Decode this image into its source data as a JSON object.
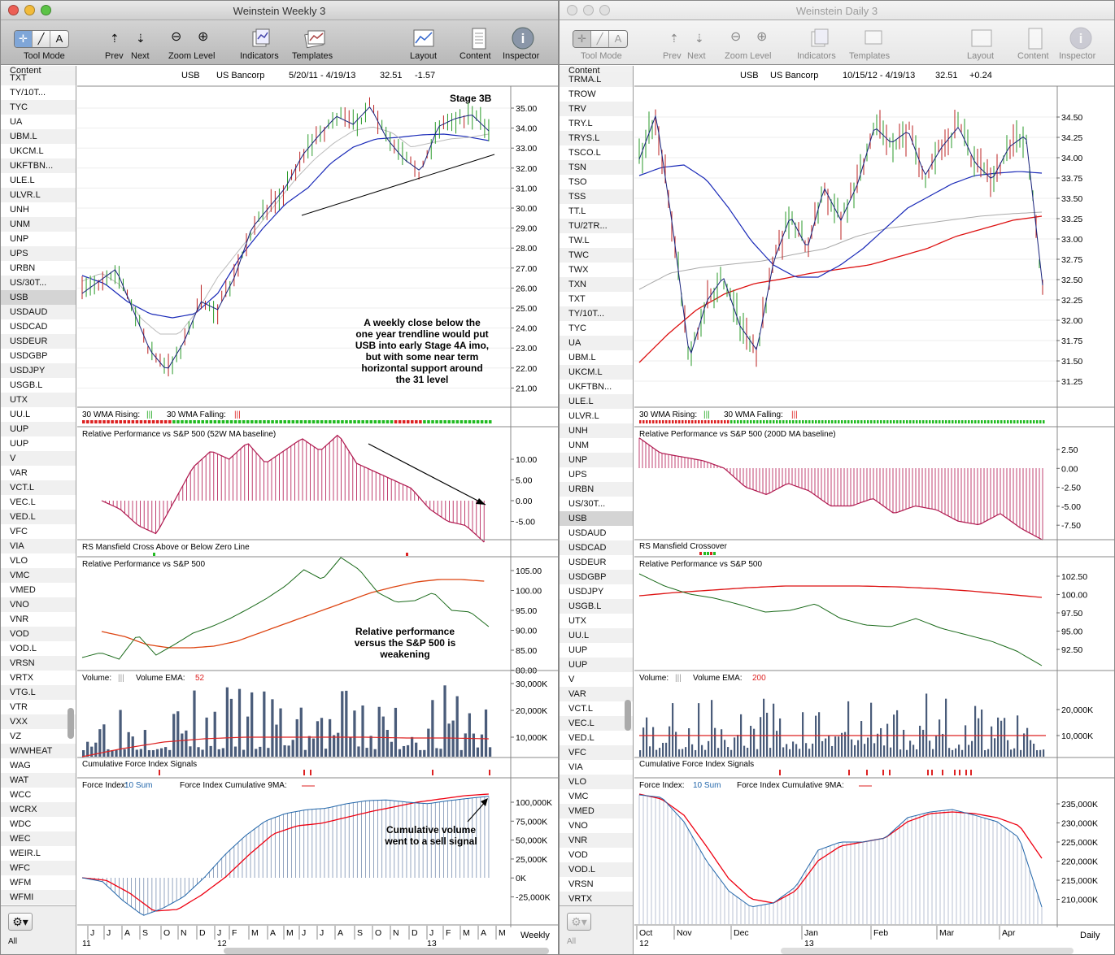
{
  "left": {
    "title": "Weinstein Weekly 3",
    "toolbar": {
      "tool_mode": "Tool Mode",
      "prev": "Prev",
      "next": "Next",
      "zoom_level": "Zoom Level",
      "indicators": "Indicators",
      "templates": "Templates",
      "layout": "Layout",
      "content": "Content",
      "inspector": "Inspector"
    },
    "sidebar_header": "Content",
    "sidebar_items": [
      "TXT",
      "TY/10T...",
      "TYC",
      "UA",
      "UBM.L",
      "UKCM.L",
      "UKFTBN...",
      "ULE.L",
      "ULVR.L",
      "UNH",
      "UNM",
      "UNP",
      "UPS",
      "URBN",
      "US/30T...",
      "USB",
      "USDAUD",
      "USDCAD",
      "USDEUR",
      "USDGBP",
      "USDJPY",
      "USGB.L",
      "UTX",
      "UU.L",
      "UUP",
      "UUP",
      "V",
      "VAR",
      "VCT.L",
      "VEC.L",
      "VED.L",
      "VFC",
      "VIA",
      "VLO",
      "VMC",
      "VMED",
      "VNO",
      "VNR",
      "VOD",
      "VOD.L",
      "VRSN",
      "VRTX",
      "VTG.L",
      "VTR",
      "VXX",
      "VZ",
      "W/WHEAT",
      "WAG",
      "WAT",
      "WCC",
      "WCRX",
      "WDC",
      "WEC",
      "WEIR.L",
      "WFC",
      "WFM",
      "WFMI"
    ],
    "sidebar_selected": "USB",
    "all_label": "All",
    "header": {
      "symbol": "USB",
      "name": "US Bancorp",
      "range": "5/20/11 - 4/19/13",
      "price": "32.51",
      "change": "-1.57"
    },
    "panels": {
      "price": {
        "stage": "Stage 3B",
        "ticks": [
          "35.00",
          "34.00",
          "33.00",
          "32.00",
          "31.00",
          "30.00",
          "29.00",
          "28.00",
          "27.00",
          "26.00",
          "25.00",
          "24.00",
          "23.00",
          "22.00",
          "21.00"
        ],
        "note": [
          "A weekly close below the",
          "one year trendline would put",
          "USB into early Stage 4A imo,",
          "but with some near term",
          "horizontal support around",
          "the 31 level"
        ]
      },
      "wma": {
        "rising": "30 WMA Rising:",
        "falling": "30 WMA Falling:"
      },
      "relperf": {
        "title": "Relative Performance vs S&P 500 (52W MA baseline)",
        "ticks": [
          "10.00",
          "5.00",
          "0.00",
          "-5.00"
        ]
      },
      "mansfield": {
        "title": "RS Mansfield Cross Above or Below Zero Line"
      },
      "rs": {
        "title": "Relative Performance vs S&P 500",
        "ticks": [
          "105.00",
          "100.00",
          "95.00",
          "90.00",
          "85.00",
          "80.00"
        ],
        "note": [
          "Relative performance",
          "versus the S&P 500 is",
          "weakening"
        ]
      },
      "volume": {
        "title": "Volume:",
        "ema_label": "Volume EMA:",
        "ema_value": "52",
        "ticks": [
          "30,000K",
          "20,000K",
          "10,000K"
        ]
      },
      "cfi": {
        "title": "Cumulative Force Index Signals"
      },
      "force": {
        "title": "Force Index:",
        "sum": "10 Sum",
        "cum_label": "Force Index Cumulative 9MA:",
        "ticks": [
          "100,000K",
          "75,000K",
          "50,000K",
          "25,000K",
          "0K",
          "-25,000K"
        ],
        "note": [
          "Cumulative volume",
          "went to a sell signal"
        ]
      }
    },
    "axis_months": [
      "J",
      "J",
      "A",
      "S",
      "O",
      "N",
      "D",
      "J",
      "F",
      "M",
      "A",
      "M",
      "J",
      "J",
      "A",
      "S",
      "O",
      "N",
      "D",
      "J",
      "F",
      "M",
      "A",
      "M"
    ],
    "axis_years": [
      "11",
      "12",
      "13"
    ],
    "period": "Weekly"
  },
  "right": {
    "title": "Weinstein Daily 3",
    "toolbar": {
      "tool_mode": "Tool Mode",
      "prev": "Prev",
      "next": "Next",
      "zoom_level": "Zoom Level",
      "indicators": "Indicators",
      "templates": "Templates",
      "layout": "Layout",
      "content": "Content",
      "inspector": "Inspector"
    },
    "sidebar_header": "Content",
    "sidebar_items": [
      "TRMA.L",
      "TROW",
      "TRV",
      "TRY.L",
      "TRYS.L",
      "TSCO.L",
      "TSN",
      "TSO",
      "TSS",
      "TT.L",
      "TU/2TR...",
      "TW.L",
      "TWC",
      "TWX",
      "TXN",
      "TXT",
      "TY/10T...",
      "TYC",
      "UA",
      "UBM.L",
      "UKCM.L",
      "UKFTBN...",
      "ULE.L",
      "ULVR.L",
      "UNH",
      "UNM",
      "UNP",
      "UPS",
      "URBN",
      "US/30T...",
      "USB",
      "USDAUD",
      "USDCAD",
      "USDEUR",
      "USDGBP",
      "USDJPY",
      "USGB.L",
      "UTX",
      "UU.L",
      "UUP",
      "UUP",
      "V",
      "VAR",
      "VCT.L",
      "VEC.L",
      "VED.L",
      "VFC",
      "VIA",
      "VLO",
      "VMC",
      "VMED",
      "VNO",
      "VNR",
      "VOD",
      "VOD.L",
      "VRSN",
      "VRTX"
    ],
    "sidebar_selected": "USB",
    "all_label": "All",
    "header": {
      "symbol": "USB",
      "name": "US Bancorp",
      "range": "10/15/12 - 4/19/13",
      "price": "32.51",
      "change": "+0.24"
    },
    "panels": {
      "price": {
        "ticks": [
          "34.50",
          "34.25",
          "34.00",
          "33.75",
          "33.50",
          "33.25",
          "33.00",
          "32.75",
          "32.50",
          "32.25",
          "32.00",
          "31.75",
          "31.50",
          "31.25"
        ]
      },
      "wma": {
        "rising": "30 WMA Rising:",
        "falling": "30 WMA Falling:"
      },
      "relperf": {
        "title": "Relative Performance vs S&P 500 (200D MA baseline)",
        "ticks": [
          "2.50",
          "0.00",
          "-2.50",
          "-5.00",
          "-7.50"
        ]
      },
      "mansfield": {
        "title": "RS Mansfield Crossover"
      },
      "rs": {
        "title": "Relative Performance vs S&P 500",
        "ticks": [
          "102.50",
          "100.00",
          "97.50",
          "95.00",
          "92.50"
        ]
      },
      "volume": {
        "title": "Volume:",
        "ema_label": "Volume EMA:",
        "ema_value": "200",
        "ticks": [
          "20,000K",
          "10,000K"
        ]
      },
      "cfi": {
        "title": "Cumulative Force Index Signals"
      },
      "force": {
        "title": "Force Index:",
        "sum": "10 Sum",
        "cum_label": "Force Index Cumulative 9MA:",
        "ticks": [
          "235,000K",
          "230,000K",
          "225,000K",
          "220,000K",
          "215,000K",
          "210,000K"
        ]
      }
    },
    "axis_months": [
      "Oct",
      "Nov",
      "Dec",
      "Jan",
      "Feb",
      "Mar",
      "Apr"
    ],
    "axis_years": [
      "12",
      "13"
    ],
    "period": "Daily"
  }
}
